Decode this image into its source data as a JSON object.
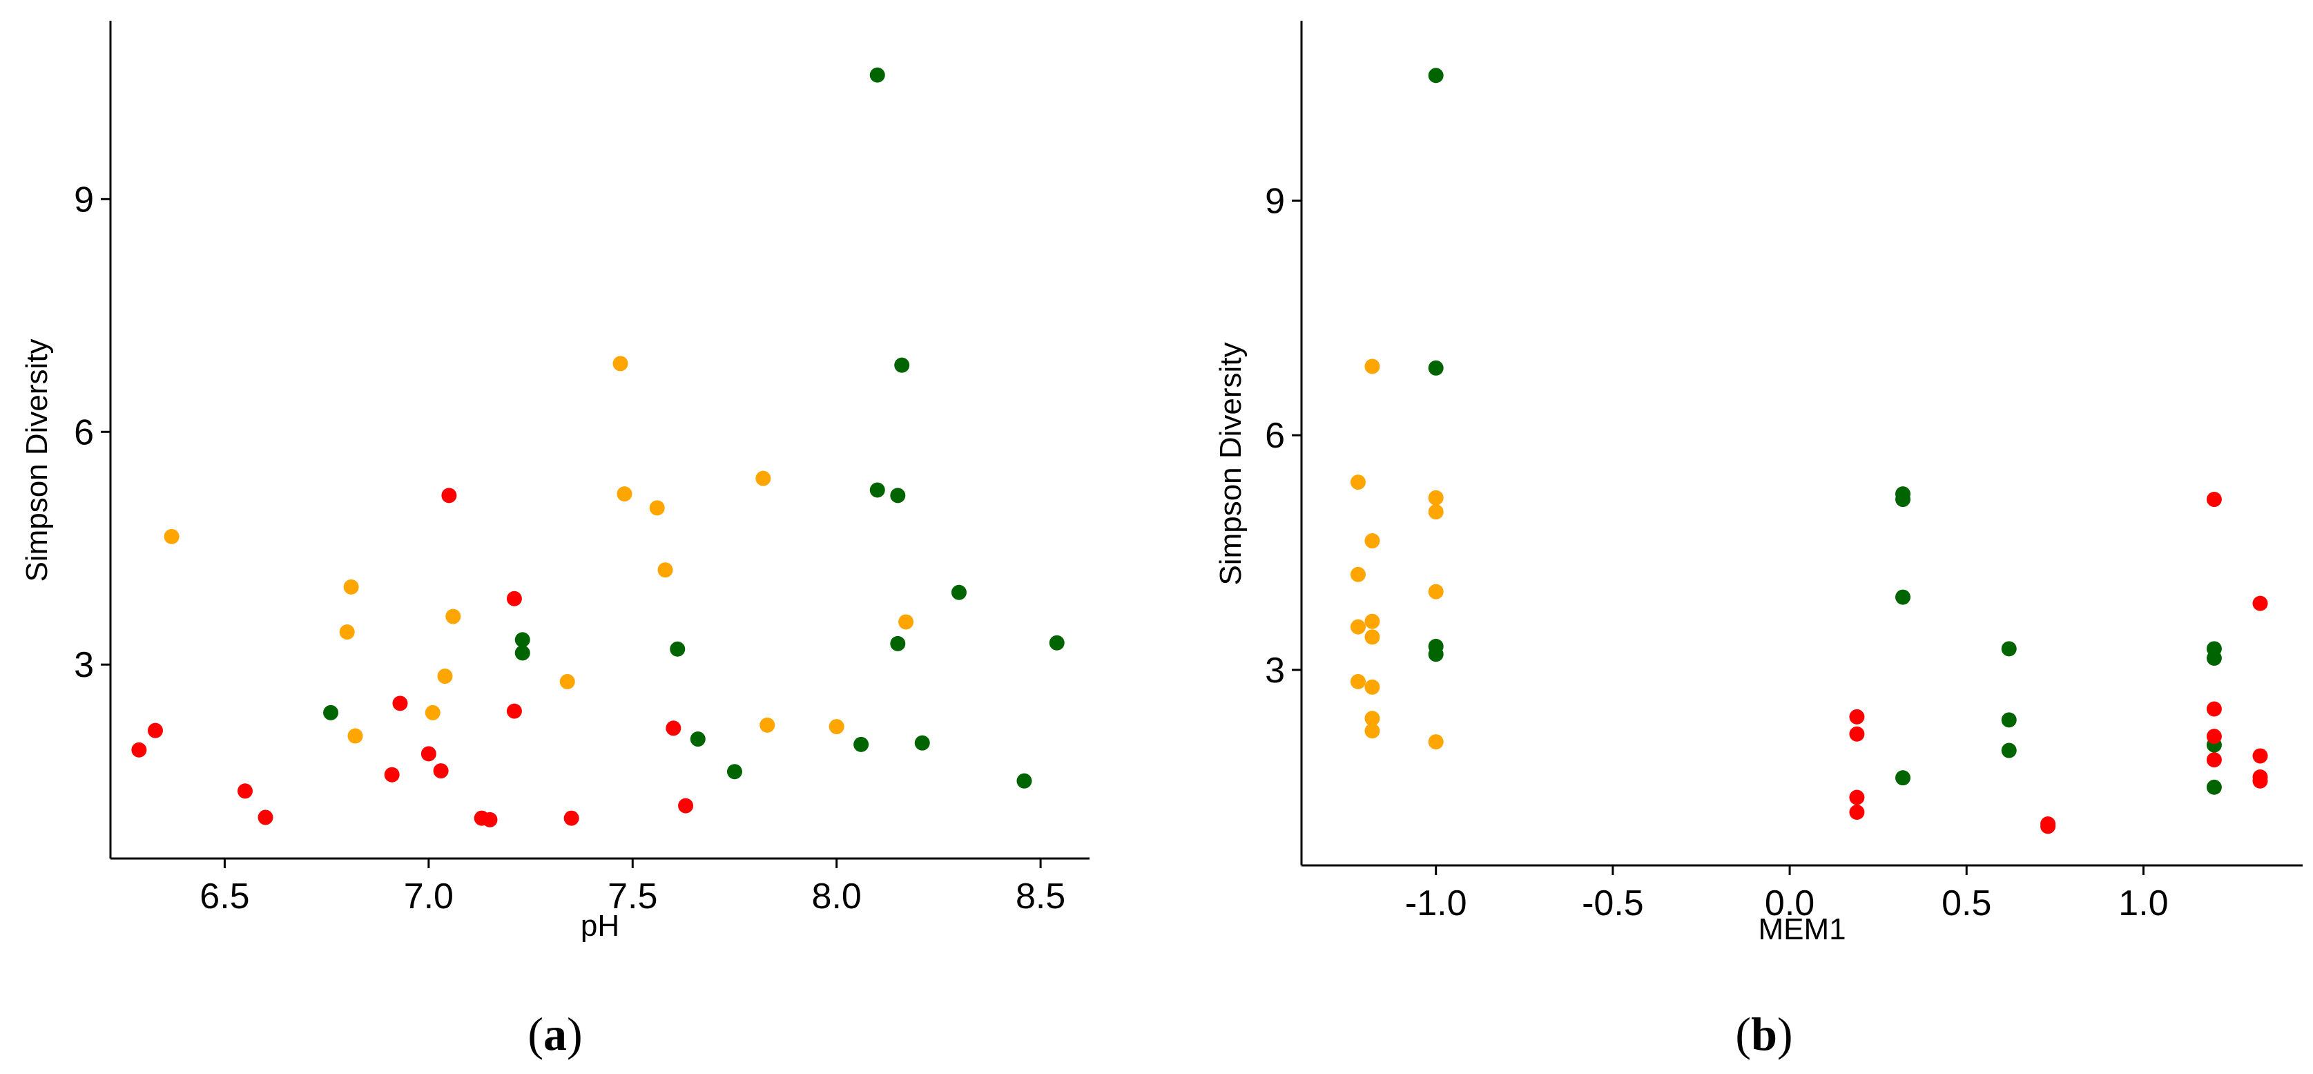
{
  "chart_data": [
    {
      "type": "scatter",
      "panel_label": "a",
      "xlabel": "pH",
      "ylabel": "Simpson Diversity",
      "xlim": [
        6.22,
        8.62
      ],
      "ylim": [
        0.5,
        11.3
      ],
      "xticks": [
        6.5,
        7.0,
        7.5,
        8.0,
        8.5
      ],
      "xtick_labels": [
        "6.5",
        "7.0",
        "7.5",
        "8.0",
        "8.5"
      ],
      "yticks": [
        3,
        6,
        9
      ],
      "ytick_labels": [
        "3",
        "6",
        "9"
      ],
      "grid": false,
      "legend": "none",
      "series": [
        {
          "color": "#ff0000",
          "points": [
            [
              6.29,
              1.9
            ],
            [
              6.33,
              2.15
            ],
            [
              6.55,
              1.37
            ],
            [
              6.6,
              1.03
            ],
            [
              6.91,
              1.58
            ],
            [
              6.93,
              2.5
            ],
            [
              7.0,
              1.85
            ],
            [
              7.03,
              1.63
            ],
            [
              7.05,
              5.18
            ],
            [
              7.13,
              1.02
            ],
            [
              7.15,
              1.0
            ],
            [
              7.21,
              3.85
            ],
            [
              7.21,
              2.4
            ],
            [
              7.35,
              1.02
            ],
            [
              7.6,
              2.18
            ],
            [
              7.63,
              1.18
            ]
          ]
        },
        {
          "color": "#ffa500",
          "points": [
            [
              6.37,
              4.65
            ],
            [
              6.8,
              3.42
            ],
            [
              6.81,
              4.0
            ],
            [
              6.82,
              2.08
            ],
            [
              7.01,
              2.38
            ],
            [
              7.04,
              2.85
            ],
            [
              7.06,
              3.62
            ],
            [
              7.34,
              2.78
            ],
            [
              7.47,
              6.88
            ],
            [
              7.48,
              5.2
            ],
            [
              7.56,
              5.02
            ],
            [
              7.58,
              4.22
            ],
            [
              7.82,
              5.4
            ],
            [
              7.83,
              2.22
            ],
            [
              8.0,
              2.2
            ],
            [
              8.17,
              3.55
            ]
          ]
        },
        {
          "color": "#006400",
          "points": [
            [
              6.76,
              2.38
            ],
            [
              7.23,
              3.32
            ],
            [
              7.23,
              3.15
            ],
            [
              7.61,
              3.2
            ],
            [
              7.66,
              2.04
            ],
            [
              7.75,
              1.62
            ],
            [
              8.06,
              1.97
            ],
            [
              8.1,
              10.6
            ],
            [
              8.1,
              5.25
            ],
            [
              8.15,
              5.18
            ],
            [
              8.15,
              3.27
            ],
            [
              8.16,
              6.86
            ],
            [
              8.21,
              1.99
            ],
            [
              8.3,
              3.93
            ],
            [
              8.46,
              1.5
            ],
            [
              8.54,
              3.28
            ]
          ]
        }
      ]
    },
    {
      "type": "scatter",
      "panel_label": "b",
      "xlabel": "MEM1",
      "ylabel": "Simpson Diversity",
      "xlim": [
        -1.38,
        1.45
      ],
      "ylim": [
        0.5,
        11.3
      ],
      "xticks": [
        -1.0,
        -0.5,
        0.0,
        0.5,
        1.0
      ],
      "xtick_labels": [
        "-1.0",
        "-0.5",
        "0.0",
        "0.5",
        "1.0"
      ],
      "yticks": [
        3,
        6,
        9
      ],
      "ytick_labels": [
        "3",
        "6",
        "9"
      ],
      "grid": false,
      "legend": "none",
      "series": [
        {
          "color": "#ffa500",
          "points": [
            [
              -1.22,
              5.4
            ],
            [
              -1.18,
              6.88
            ],
            [
              -1.18,
              4.65
            ],
            [
              -1.22,
              4.22
            ],
            [
              -1.18,
              3.62
            ],
            [
              -1.22,
              3.55
            ],
            [
              -1.18,
              3.42
            ],
            [
              -1.22,
              2.85
            ],
            [
              -1.18,
              2.78
            ],
            [
              -1.18,
              2.38
            ],
            [
              -1.18,
              2.22
            ],
            [
              -1.0,
              5.2
            ],
            [
              -1.0,
              5.02
            ],
            [
              -1.0,
              4.0
            ],
            [
              -1.0,
              2.08
            ]
          ]
        },
        {
          "color": "#006400",
          "points": [
            [
              -1.0,
              10.6
            ],
            [
              -1.0,
              6.86
            ],
            [
              -1.0,
              3.3
            ],
            [
              -1.0,
              3.2
            ],
            [
              0.32,
              5.25
            ],
            [
              0.32,
              5.18
            ],
            [
              0.32,
              3.93
            ],
            [
              0.32,
              1.62
            ],
            [
              0.62,
              3.27
            ],
            [
              0.62,
              2.36
            ],
            [
              0.62,
              1.97
            ],
            [
              1.2,
              3.27
            ],
            [
              1.2,
              3.15
            ],
            [
              1.2,
              2.04
            ],
            [
              1.2,
              1.5
            ]
          ]
        },
        {
          "color": "#ff0000",
          "points": [
            [
              0.19,
              2.4
            ],
            [
              0.19,
              2.18
            ],
            [
              0.19,
              1.37
            ],
            [
              0.19,
              1.18
            ],
            [
              0.73,
              1.03
            ],
            [
              0.73,
              1.0
            ],
            [
              1.2,
              5.18
            ],
            [
              1.2,
              2.5
            ],
            [
              1.2,
              2.15
            ],
            [
              1.2,
              1.85
            ],
            [
              1.33,
              3.85
            ],
            [
              1.33,
              1.9
            ],
            [
              1.33,
              1.63
            ],
            [
              1.33,
              1.58
            ]
          ]
        }
      ]
    }
  ]
}
